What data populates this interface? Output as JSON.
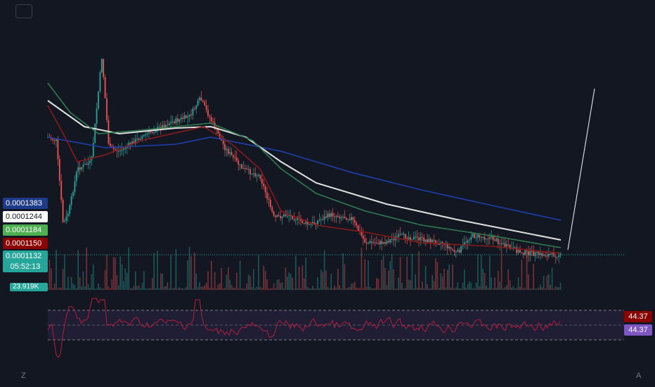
{
  "chart_data": {
    "type": "candlestick",
    "symbol_price_now": "0.0001132",
    "countdown": "05:52:13",
    "volume_label": "23.919K",
    "price_labels": [
      {
        "value": "0.0001383",
        "bg": "#1e3a8a",
        "fg": "#ffffff"
      },
      {
        "value": "0.0001244",
        "bg": "#ffffff",
        "fg": "#131722"
      },
      {
        "value": "0.0001184",
        "bg": "#4caf50",
        "fg": "#ffffff"
      },
      {
        "value": "0.0001150",
        "bg": "#8b0000",
        "fg": "#ffffff"
      },
      {
        "value": "0.0001132",
        "bg": "#26a69a",
        "fg": "#ffffff"
      }
    ],
    "moving_averages": [
      {
        "color": "#1e40af"
      },
      {
        "color": "#e0e0e0"
      },
      {
        "color": "#2e7d4f"
      },
      {
        "color": "#8b1a1a"
      }
    ],
    "rsi": {
      "values_label_1": "44.37",
      "values_label_2": "44.37",
      "label_1_bg": "#8b0000",
      "label_2_bg": "#7e57c2",
      "line_color": "#b71c3c",
      "band_color": "#2a2545"
    },
    "colors": {
      "up": "#26a69a",
      "down": "#ef5350",
      "bg": "#131722"
    }
  },
  "axis": {
    "left_letter": "Z",
    "right_letter": "A"
  }
}
